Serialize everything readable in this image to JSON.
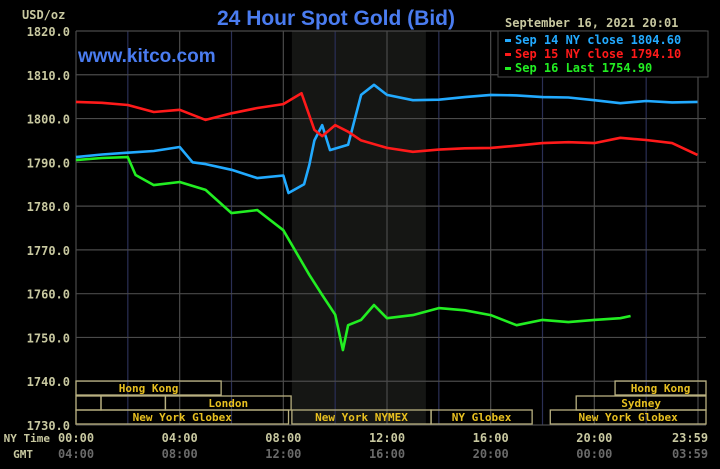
{
  "chart_data": {
    "type": "line",
    "title": "24 Hour Spot Gold (Bid)",
    "ylabel": "USD/oz",
    "watermark": "www.kitco.com",
    "timestamp": "September 16, 2021 20:01",
    "ylim": [
      1730,
      1820
    ],
    "xlim_hours": [
      0,
      24
    ],
    "grid": true,
    "legend_position": "top-right",
    "y_ticks": [
      "1820.0",
      "1810.0",
      "1800.0",
      "1790.0",
      "1780.0",
      "1770.0",
      "1760.0",
      "1750.0",
      "1740.0",
      "1730.0"
    ],
    "x_row_labels": {
      "ny": "NY Time",
      "gmt": "GMT"
    },
    "x_ticks_ny": [
      "00:00",
      "04:00",
      "08:00",
      "12:00",
      "16:00",
      "20:00",
      "23:59"
    ],
    "x_ticks_gmt": [
      "04:00",
      "08:00",
      "12:00",
      "16:00",
      "20:00",
      "00:00",
      "03:59"
    ],
    "shaded_session_hours": [
      8.33,
      13.5
    ],
    "series": [
      {
        "name": "Sep 14 NY close 1804.60",
        "color": "#22aaff",
        "x": [
          0,
          1,
          2,
          3,
          4,
          4.5,
          5,
          6,
          7,
          8,
          8.2,
          8.8,
          9,
          9.2,
          9.5,
          9.8,
          10.5,
          11,
          11.5,
          12,
          13,
          14,
          15,
          16,
          17,
          18,
          19,
          20,
          21,
          22,
          23,
          23.98
        ],
        "y": [
          1791.2,
          1791.8,
          1792.2,
          1792.6,
          1793.5,
          1790.0,
          1789.6,
          1788.3,
          1786.4,
          1787.0,
          1783.0,
          1785.0,
          1789.4,
          1795.0,
          1798.5,
          1792.8,
          1794.0,
          1805.4,
          1807.7,
          1805.4,
          1804.2,
          1804.3,
          1804.9,
          1805.4,
          1805.3,
          1804.9,
          1804.8,
          1804.2,
          1803.5,
          1804.0,
          1803.7,
          1803.8
        ]
      },
      {
        "name": "Sep 15 NY close 1794.10",
        "color": "#ff1a1a",
        "x": [
          0,
          1,
          2,
          3,
          4,
          5,
          6,
          7,
          8,
          8.7,
          9.2,
          9.5,
          10,
          10.5,
          11,
          12,
          13,
          14,
          15,
          16,
          17,
          18,
          19,
          20,
          21,
          22,
          23,
          23.98
        ],
        "y": [
          1803.8,
          1803.6,
          1803.1,
          1801.5,
          1802.0,
          1799.7,
          1801.2,
          1802.4,
          1803.3,
          1805.8,
          1797.4,
          1796.0,
          1798.5,
          1797.0,
          1795.0,
          1793.3,
          1792.4,
          1792.9,
          1793.2,
          1793.3,
          1793.8,
          1794.4,
          1794.6,
          1794.4,
          1795.6,
          1795.1,
          1794.4,
          1791.7
        ]
      },
      {
        "name": "Sep 16 Last 1754.90",
        "color": "#22ee22",
        "x": [
          0,
          1,
          2,
          2.3,
          3,
          4,
          5,
          6,
          7,
          8,
          9,
          9.5,
          10,
          10.3,
          10.5,
          11,
          11.5,
          12,
          13,
          14,
          15,
          16,
          17,
          18,
          19,
          20,
          21,
          21.4
        ],
        "y": [
          1790.5,
          1791.0,
          1791.2,
          1787.1,
          1784.8,
          1785.5,
          1783.7,
          1778.4,
          1779.1,
          1774.5,
          1764.3,
          1759.7,
          1755.2,
          1747.1,
          1752.8,
          1754.0,
          1757.4,
          1754.4,
          1755.1,
          1756.7,
          1756.2,
          1755.1,
          1752.8,
          1754.0,
          1753.5,
          1754.0,
          1754.4,
          1754.9
        ]
      }
    ],
    "sessions": [
      {
        "label": "Hong Kong",
        "row": 0,
        "start": 0,
        "end": 5.6
      },
      {
        "label": "Hong Kong",
        "row": 0,
        "start": 20.8,
        "end": 24
      },
      {
        "label": "London",
        "row": 1,
        "start": 3.45,
        "end": 8.3
      },
      {
        "label": "Sydney",
        "row": 1,
        "start": 19.3,
        "end": 24
      },
      {
        "label": "New York Globex",
        "row": 2,
        "start": 0,
        "end": 8.2
      },
      {
        "label": "New York NYMEX",
        "row": 2,
        "start": 8.33,
        "end": 13.7
      },
      {
        "label": "NY Globex",
        "row": 2,
        "start": 13.7,
        "end": 17.6
      },
      {
        "label": "New York Globex",
        "row": 2,
        "start": 18.3,
        "end": 24
      }
    ],
    "colors": {
      "title": "#4a7cf0",
      "axis_text": "#c8c8a0",
      "gmt_text": "#6a6a6a",
      "grid": "#4a4a4a",
      "session_text": "#e8c020",
      "session_border": "#b8b080",
      "shade": "#151614"
    }
  }
}
